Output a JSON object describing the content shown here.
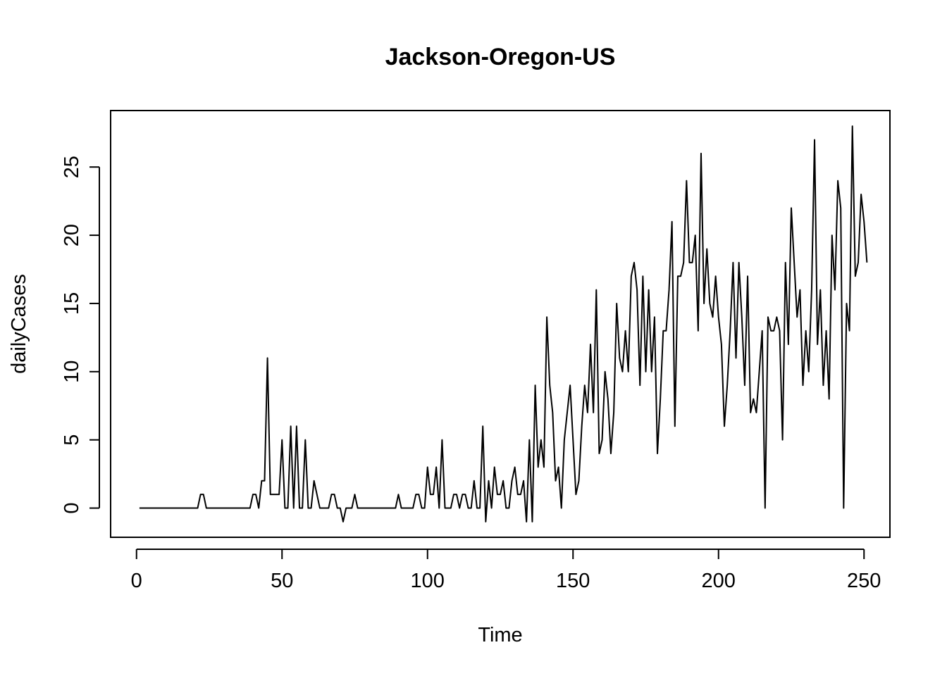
{
  "chart_data": {
    "type": "line",
    "title": "Jackson-Oregon-US",
    "xlabel": "Time",
    "ylabel": "dailyCases",
    "xlim": [
      -8.9,
      258.9
    ],
    "ylim": [
      -2.14,
      29.14
    ],
    "xticks": [
      0,
      50,
      100,
      150,
      200,
      250
    ],
    "yticks": [
      0,
      5,
      10,
      15,
      20,
      25
    ],
    "grid": false,
    "legend": "none",
    "series": [
      {
        "color": "#000000",
        "x_start": 1,
        "values": [
          0,
          0,
          0,
          0,
          0,
          0,
          0,
          0,
          0,
          0,
          0,
          0,
          0,
          0,
          0,
          0,
          0,
          0,
          0,
          0,
          0,
          1,
          1,
          0,
          0,
          0,
          0,
          0,
          0,
          0,
          0,
          0,
          0,
          0,
          0,
          0,
          0,
          0,
          0,
          1,
          1,
          0,
          2,
          2,
          11,
          1,
          1,
          1,
          1,
          5,
          0,
          0,
          6,
          0,
          6,
          0,
          0,
          5,
          0,
          0,
          2,
          1,
          0,
          0,
          0,
          0,
          1,
          1,
          0,
          0,
          -1,
          0,
          0,
          0,
          1,
          0,
          0,
          0,
          0,
          0,
          0,
          0,
          0,
          0,
          0,
          0,
          0,
          0,
          0,
          1,
          0,
          0,
          0,
          0,
          0,
          1,
          1,
          0,
          0,
          3,
          1,
          1,
          3,
          0,
          5,
          0,
          0,
          0,
          1,
          1,
          0,
          1,
          1,
          0,
          0,
          2,
          0,
          0,
          6,
          -1,
          2,
          0,
          3,
          1,
          1,
          2,
          0,
          0,
          2,
          3,
          1,
          1,
          2,
          -1,
          5,
          -1,
          9,
          3,
          5,
          3,
          14,
          9,
          7,
          2,
          3,
          0,
          5,
          7,
          9,
          5,
          1,
          2,
          6,
          9,
          7,
          12,
          7,
          16,
          4,
          5,
          10,
          8,
          4,
          7,
          15,
          11,
          10,
          13,
          10,
          17,
          18,
          16,
          9,
          17,
          10,
          16,
          10,
          14,
          4,
          8,
          13,
          13,
          16,
          21,
          6,
          17,
          17,
          18,
          24,
          18,
          18,
          20,
          13,
          26,
          15,
          19,
          15,
          14,
          17,
          14,
          12,
          6,
          9,
          13,
          18,
          11,
          18,
          14,
          9,
          17,
          7,
          8,
          7,
          10,
          13,
          0,
          14,
          13,
          13,
          14,
          13,
          5,
          18,
          12,
          22,
          18,
          14,
          16,
          9,
          13,
          10,
          16,
          27,
          12,
          16,
          9,
          13,
          8,
          20,
          16,
          24,
          22,
          0,
          15,
          13,
          28,
          17,
          18,
          23,
          21,
          18
        ]
      }
    ]
  }
}
